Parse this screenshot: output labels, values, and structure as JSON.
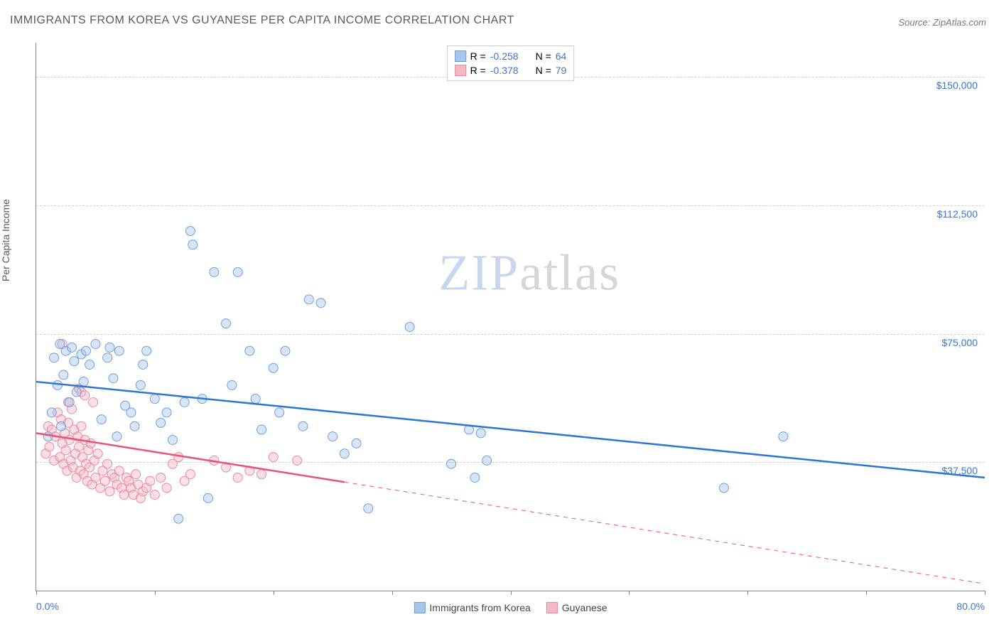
{
  "title": "IMMIGRANTS FROM KOREA VS GUYANESE PER CAPITA INCOME CORRELATION CHART",
  "source": "Source: ZipAtlas.com",
  "y_axis_label": "Per Capita Income",
  "watermark_a": "ZIP",
  "watermark_b": "atlas",
  "chart": {
    "type": "scatter",
    "x_min": 0.0,
    "x_max": 80.0,
    "y_min": 0,
    "y_max": 160000,
    "x_left_label": "0.0%",
    "x_right_label": "80.0%",
    "y_ticks": [
      {
        "v": 37500,
        "label": "$37,500"
      },
      {
        "v": 75000,
        "label": "$75,000"
      },
      {
        "v": 112500,
        "label": "$112,500"
      },
      {
        "v": 150000,
        "label": "$150,000"
      }
    ],
    "x_tick_positions": [
      0,
      10,
      20,
      30,
      40,
      50,
      60,
      70,
      80
    ],
    "grid_color": "#d0d0d0",
    "background_color": "#ffffff",
    "marker_radius": 6.5,
    "marker_opacity": 0.45,
    "trend_line_width": 2.5,
    "series": [
      {
        "name": "Immigrants from Korea",
        "color_fill": "#a8c5ec",
        "color_stroke": "#6fa0de",
        "trend_color": "#2f74d0",
        "R": "-0.258",
        "N": "64",
        "trend": {
          "x1": 0,
          "y1": 61000,
          "x2": 80,
          "y2": 33000,
          "solid_to_x": 80
        },
        "points": [
          [
            1,
            45000
          ],
          [
            1.3,
            52000
          ],
          [
            1.5,
            68000
          ],
          [
            1.8,
            60000
          ],
          [
            2.0,
            72000
          ],
          [
            2.1,
            48000
          ],
          [
            2.3,
            63000
          ],
          [
            2.5,
            70000
          ],
          [
            2.8,
            55000
          ],
          [
            3.0,
            71000
          ],
          [
            3.2,
            67000
          ],
          [
            3.4,
            58000
          ],
          [
            3.8,
            69000
          ],
          [
            4.0,
            61000
          ],
          [
            4.2,
            70000
          ],
          [
            4.5,
            66000
          ],
          [
            5.0,
            72000
          ],
          [
            5.5,
            50000
          ],
          [
            6.0,
            68000
          ],
          [
            6.2,
            71000
          ],
          [
            6.5,
            62000
          ],
          [
            6.8,
            45000
          ],
          [
            7.0,
            70000
          ],
          [
            7.5,
            54000
          ],
          [
            8.0,
            52000
          ],
          [
            8.3,
            48000
          ],
          [
            8.8,
            60000
          ],
          [
            9.0,
            66000
          ],
          [
            9.3,
            70000
          ],
          [
            10.0,
            56000
          ],
          [
            10.5,
            49000
          ],
          [
            11.0,
            52000
          ],
          [
            11.5,
            44000
          ],
          [
            12.0,
            21000
          ],
          [
            12.5,
            55000
          ],
          [
            13.0,
            105000
          ],
          [
            13.2,
            101000
          ],
          [
            14.0,
            56000
          ],
          [
            14.5,
            27000
          ],
          [
            15.0,
            93000
          ],
          [
            16.0,
            78000
          ],
          [
            16.5,
            60000
          ],
          [
            17.0,
            93000
          ],
          [
            18.0,
            70000
          ],
          [
            18.5,
            56000
          ],
          [
            19.0,
            47000
          ],
          [
            20.0,
            65000
          ],
          [
            20.5,
            52000
          ],
          [
            21.0,
            70000
          ],
          [
            22.5,
            48000
          ],
          [
            23.0,
            85000
          ],
          [
            24.0,
            84000
          ],
          [
            25.0,
            45000
          ],
          [
            26.0,
            40000
          ],
          [
            27.0,
            43000
          ],
          [
            28.0,
            24000
          ],
          [
            31.5,
            77000
          ],
          [
            35.0,
            37000
          ],
          [
            36.5,
            47000
          ],
          [
            37.0,
            33000
          ],
          [
            37.5,
            46000
          ],
          [
            38.0,
            38000
          ],
          [
            58.0,
            30000
          ],
          [
            63.0,
            45000
          ]
        ]
      },
      {
        "name": "Guyanese",
        "color_fill": "#f4b8c6",
        "color_stroke": "#e78aa3",
        "trend_color": "#e8537a",
        "R": "-0.378",
        "N": "79",
        "trend": {
          "x1": 0,
          "y1": 46000,
          "x2": 80,
          "y2": 2000,
          "solid_to_x": 26
        },
        "points": [
          [
            0.8,
            40000
          ],
          [
            1.0,
            48000
          ],
          [
            1.1,
            42000
          ],
          [
            1.3,
            47000
          ],
          [
            1.5,
            38000
          ],
          [
            1.6,
            45000
          ],
          [
            1.8,
            52000
          ],
          [
            2.0,
            39000
          ],
          [
            2.1,
            50000
          ],
          [
            2.2,
            43000
          ],
          [
            2.3,
            37000
          ],
          [
            2.4,
            46000
          ],
          [
            2.5,
            41000
          ],
          [
            2.6,
            35000
          ],
          [
            2.7,
            49000
          ],
          [
            2.8,
            44000
          ],
          [
            2.9,
            38000
          ],
          [
            3.0,
            53000
          ],
          [
            3.1,
            36000
          ],
          [
            3.2,
            47000
          ],
          [
            3.3,
            40000
          ],
          [
            3.4,
            33000
          ],
          [
            3.5,
            45000
          ],
          [
            3.6,
            42000
          ],
          [
            3.7,
            35000
          ],
          [
            3.8,
            48000
          ],
          [
            3.9,
            39000
          ],
          [
            4.0,
            34000
          ],
          [
            4.1,
            44000
          ],
          [
            4.2,
            37000
          ],
          [
            4.3,
            32000
          ],
          [
            4.4,
            41000
          ],
          [
            4.5,
            36000
          ],
          [
            4.6,
            43000
          ],
          [
            4.7,
            31000
          ],
          [
            4.8,
            55000
          ],
          [
            4.9,
            38000
          ],
          [
            5.0,
            33000
          ],
          [
            5.2,
            40000
          ],
          [
            5.4,
            30000
          ],
          [
            5.6,
            35000
          ],
          [
            5.8,
            32000
          ],
          [
            6.0,
            37000
          ],
          [
            6.2,
            29000
          ],
          [
            6.4,
            34000
          ],
          [
            6.6,
            33000
          ],
          [
            6.8,
            31000
          ],
          [
            7.0,
            35000
          ],
          [
            7.2,
            30000
          ],
          [
            7.4,
            28000
          ],
          [
            7.6,
            33000
          ],
          [
            7.8,
            32000
          ],
          [
            8.0,
            30000
          ],
          [
            8.2,
            28000
          ],
          [
            8.4,
            34000
          ],
          [
            8.6,
            31000
          ],
          [
            8.8,
            27000
          ],
          [
            9.0,
            29000
          ],
          [
            9.3,
            30000
          ],
          [
            9.6,
            32000
          ],
          [
            10.0,
            28000
          ],
          [
            10.5,
            33000
          ],
          [
            11.0,
            30000
          ],
          [
            11.5,
            37000
          ],
          [
            12.0,
            39000
          ],
          [
            12.5,
            32000
          ],
          [
            13.0,
            34000
          ],
          [
            15.0,
            38000
          ],
          [
            16.0,
            36000
          ],
          [
            17.0,
            33000
          ],
          [
            18.0,
            35000
          ],
          [
            19.0,
            34000
          ],
          [
            20.0,
            39000
          ],
          [
            22.0,
            38000
          ],
          [
            2.2,
            72000
          ],
          [
            3.6,
            59000
          ],
          [
            3.8,
            58000
          ],
          [
            2.7,
            55000
          ],
          [
            4.1,
            57000
          ]
        ]
      }
    ]
  },
  "legend_top": {
    "r_prefix": "R = ",
    "n_prefix": "N = "
  }
}
